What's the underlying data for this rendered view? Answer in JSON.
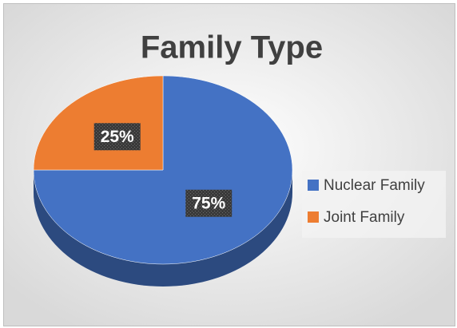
{
  "chart_data": {
    "type": "pie",
    "title": "Family Type",
    "categories": [
      "Nuclear Family",
      "Joint Family"
    ],
    "values": [
      75,
      25
    ],
    "value_labels": [
      "75%",
      "25%"
    ],
    "colors": [
      "#4472c4",
      "#ed7d31"
    ],
    "legend": "right"
  }
}
